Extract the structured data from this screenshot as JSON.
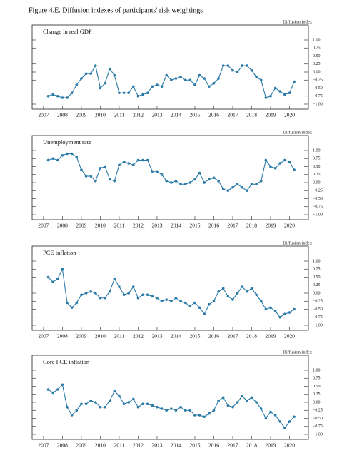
{
  "title": "Figure 4.E. Diffusion indexes of participants' risk weightings",
  "chart_data": [
    {
      "type": "line",
      "title": "Change in real GDP",
      "y_label": "Diffusion index",
      "color": "#2a7aa8",
      "x": [
        2007.25,
        2007.5,
        2007.75,
        2008,
        2008.25,
        2008.5,
        2008.75,
        2009,
        2009.25,
        2009.5,
        2009.75,
        2010,
        2010.25,
        2010.5,
        2010.75,
        2011,
        2011.25,
        2011.5,
        2011.75,
        2012,
        2012.25,
        2012.5,
        2012.75,
        2013,
        2013.25,
        2013.5,
        2013.75,
        2014,
        2014.25,
        2014.5,
        2014.75,
        2015,
        2015.25,
        2015.5,
        2015.75,
        2016,
        2016.25,
        2016.5,
        2016.75,
        2017,
        2017.25,
        2017.5,
        2017.75,
        2018,
        2018.25,
        2018.5,
        2018.75,
        2019,
        2019.25,
        2019.5,
        2019.75,
        2020,
        2020.25
      ],
      "values": [
        -0.75,
        -0.7,
        -0.75,
        -0.8,
        -0.8,
        -0.65,
        -0.4,
        -0.2,
        -0.05,
        -0.05,
        0.2,
        -0.5,
        -0.35,
        0.1,
        -0.1,
        -0.65,
        -0.65,
        -0.65,
        -0.45,
        -0.75,
        -0.7,
        -0.65,
        -0.45,
        -0.4,
        -0.45,
        -0.1,
        -0.25,
        -0.2,
        -0.15,
        -0.25,
        -0.25,
        -0.4,
        -0.1,
        -0.2,
        -0.45,
        -0.35,
        -0.2,
        0.2,
        0.2,
        0.05,
        0.0,
        0.2,
        0.2,
        0.05,
        -0.15,
        -0.25,
        -0.8,
        -0.75,
        -0.5,
        -0.6,
        -0.7,
        -0.65,
        -0.3
      ],
      "xlim": [
        2006.4,
        2021
      ],
      "xticks": [
        2007,
        2008,
        2009,
        2010,
        2011,
        2012,
        2013,
        2014,
        2015,
        2016,
        2017,
        2018,
        2019,
        2020
      ],
      "ylim": [
        -1,
        1
      ],
      "yticks": [
        {
          "value": 1,
          "label": "1.00"
        },
        {
          "value": 0.75,
          "label": "0.75"
        },
        {
          "value": 0.5,
          "label": "0.50"
        },
        {
          "value": 0.25,
          "label": "0.25"
        },
        {
          "value": 0,
          "label": "0.00"
        },
        {
          "value": -0.25,
          "label": "−0.25"
        },
        {
          "value": -0.5,
          "label": "−0.50"
        },
        {
          "value": -0.75,
          "label": "−0.75"
        },
        {
          "value": -1,
          "label": "−1.00"
        }
      ]
    },
    {
      "type": "line",
      "title": "Unemployment rate",
      "y_label": "Diffusion index",
      "color": "#2a7aa8",
      "x": [
        2007.25,
        2007.5,
        2007.75,
        2008,
        2008.25,
        2008.5,
        2008.75,
        2009,
        2009.25,
        2009.5,
        2009.75,
        2010,
        2010.25,
        2010.5,
        2010.75,
        2011,
        2011.25,
        2011.5,
        2011.75,
        2012,
        2012.25,
        2012.5,
        2012.75,
        2013,
        2013.25,
        2013.5,
        2013.75,
        2014,
        2014.25,
        2014.5,
        2014.75,
        2015,
        2015.25,
        2015.5,
        2015.75,
        2016,
        2016.25,
        2016.5,
        2016.75,
        2017,
        2017.25,
        2017.5,
        2017.75,
        2018,
        2018.25,
        2018.5,
        2018.75,
        2019,
        2019.25,
        2019.5,
        2019.75,
        2020,
        2020.25
      ],
      "values": [
        0.7,
        0.75,
        0.7,
        0.85,
        0.9,
        0.9,
        0.8,
        0.4,
        0.2,
        0.2,
        0.05,
        0.45,
        0.5,
        0.1,
        0.05,
        0.55,
        0.65,
        0.6,
        0.55,
        0.7,
        0.7,
        0.7,
        0.35,
        0.35,
        0.25,
        0.05,
        0.0,
        0.05,
        -0.05,
        -0.05,
        0.0,
        0.1,
        0.3,
        0.0,
        0.1,
        0.15,
        0.05,
        -0.2,
        -0.25,
        -0.15,
        -0.05,
        -0.15,
        -0.25,
        -0.05,
        -0.05,
        0.05,
        0.7,
        0.5,
        0.45,
        0.6,
        0.7,
        0.65,
        0.4
      ],
      "xlim": [
        2006.4,
        2021
      ],
      "xticks": [
        2007,
        2008,
        2009,
        2010,
        2011,
        2012,
        2013,
        2014,
        2015,
        2016,
        2017,
        2018,
        2019,
        2020
      ],
      "ylim": [
        -1,
        1
      ],
      "yticks": [
        {
          "value": 1,
          "label": "1.00"
        },
        {
          "value": 0.75,
          "label": "0.75"
        },
        {
          "value": 0.5,
          "label": "0.50"
        },
        {
          "value": 0.25,
          "label": "0.25"
        },
        {
          "value": 0,
          "label": "0.00"
        },
        {
          "value": -0.25,
          "label": "−0.25"
        },
        {
          "value": -0.5,
          "label": "−0.50"
        },
        {
          "value": -0.75,
          "label": "−0.75"
        },
        {
          "value": -1,
          "label": "−1.00"
        }
      ]
    },
    {
      "type": "line",
      "title": "PCE inflation",
      "y_label": "Diffusion index",
      "color": "#2a7aa8",
      "x": [
        2007.25,
        2007.5,
        2007.75,
        2008,
        2008.25,
        2008.5,
        2008.75,
        2009,
        2009.25,
        2009.5,
        2009.75,
        2010,
        2010.25,
        2010.5,
        2010.75,
        2011,
        2011.25,
        2011.5,
        2011.75,
        2012,
        2012.25,
        2012.5,
        2012.75,
        2013,
        2013.25,
        2013.5,
        2013.75,
        2014,
        2014.25,
        2014.5,
        2014.75,
        2015,
        2015.25,
        2015.5,
        2015.75,
        2016,
        2016.25,
        2016.5,
        2016.75,
        2017,
        2017.25,
        2017.5,
        2017.75,
        2018,
        2018.25,
        2018.5,
        2018.75,
        2019,
        2019.25,
        2019.5,
        2019.75,
        2020,
        2020.25
      ],
      "values": [
        0.5,
        0.35,
        0.45,
        0.75,
        -0.3,
        -0.45,
        -0.3,
        -0.05,
        0.0,
        0.05,
        0.0,
        -0.15,
        -0.15,
        0.05,
        0.45,
        0.2,
        -0.05,
        0.0,
        0.2,
        -0.15,
        -0.05,
        -0.05,
        -0.1,
        -0.15,
        -0.25,
        -0.2,
        -0.25,
        -0.15,
        -0.25,
        -0.3,
        -0.4,
        -0.3,
        -0.45,
        -0.65,
        -0.35,
        -0.25,
        0.05,
        0.15,
        -0.1,
        -0.2,
        0.0,
        0.2,
        0.05,
        0.15,
        -0.05,
        -0.25,
        -0.5,
        -0.45,
        -0.55,
        -0.75,
        -0.65,
        -0.6,
        -0.5
      ],
      "xlim": [
        2006.4,
        2021
      ],
      "xticks": [
        2007,
        2008,
        2009,
        2010,
        2011,
        2012,
        2013,
        2014,
        2015,
        2016,
        2017,
        2018,
        2019,
        2020
      ],
      "ylim": [
        -1,
        1
      ],
      "yticks": [
        {
          "value": 1,
          "label": "1.00"
        },
        {
          "value": 0.75,
          "label": "0.75"
        },
        {
          "value": 0.5,
          "label": "0.50"
        },
        {
          "value": 0.25,
          "label": "0.25"
        },
        {
          "value": 0,
          "label": "0.00"
        },
        {
          "value": -0.25,
          "label": "−0.25"
        },
        {
          "value": -0.5,
          "label": "−0.50"
        },
        {
          "value": -0.75,
          "label": "−0.75"
        },
        {
          "value": -1,
          "label": "−1.00"
        }
      ]
    },
    {
      "type": "line",
      "title": "Core PCE inflation",
      "y_label": "Diffusion index",
      "color": "#2a7aa8",
      "x": [
        2007.25,
        2007.5,
        2007.75,
        2008,
        2008.25,
        2008.5,
        2008.75,
        2009,
        2009.25,
        2009.5,
        2009.75,
        2010,
        2010.25,
        2010.5,
        2010.75,
        2011,
        2011.25,
        2011.5,
        2011.75,
        2012,
        2012.25,
        2012.5,
        2012.75,
        2013,
        2013.25,
        2013.5,
        2013.75,
        2014,
        2014.25,
        2014.5,
        2014.75,
        2015,
        2015.25,
        2015.5,
        2015.75,
        2016,
        2016.25,
        2016.5,
        2016.75,
        2017,
        2017.25,
        2017.5,
        2017.75,
        2018,
        2018.25,
        2018.5,
        2018.75,
        2019,
        2019.25,
        2019.5,
        2019.75,
        2020,
        2020.25
      ],
      "values": [
        0.4,
        0.3,
        0.4,
        0.55,
        -0.15,
        -0.4,
        -0.25,
        -0.05,
        -0.05,
        0.05,
        0.0,
        -0.15,
        -0.15,
        0.05,
        0.35,
        0.2,
        -0.05,
        0.0,
        0.1,
        -0.15,
        -0.05,
        -0.05,
        -0.1,
        -0.15,
        -0.2,
        -0.25,
        -0.2,
        -0.25,
        -0.15,
        -0.25,
        -0.25,
        -0.4,
        -0.4,
        -0.45,
        -0.35,
        -0.25,
        0.05,
        0.15,
        -0.1,
        -0.15,
        0.0,
        0.2,
        0.05,
        0.15,
        0.0,
        -0.2,
        -0.5,
        -0.3,
        -0.4,
        -0.6,
        -0.8,
        -0.6,
        -0.45
      ],
      "xlim": [
        2006.4,
        2021
      ],
      "xticks": [
        2007,
        2008,
        2009,
        2010,
        2011,
        2012,
        2013,
        2014,
        2015,
        2016,
        2017,
        2018,
        2019,
        2020
      ],
      "ylim": [
        -1,
        1
      ],
      "yticks": [
        {
          "value": 1,
          "label": "1.00"
        },
        {
          "value": 0.75,
          "label": "0.75"
        },
        {
          "value": 0.5,
          "label": "0.50"
        },
        {
          "value": 0.25,
          "label": "0.25"
        },
        {
          "value": 0,
          "label": "0.00"
        },
        {
          "value": -0.25,
          "label": "−0.25"
        },
        {
          "value": -0.5,
          "label": "−0.50"
        },
        {
          "value": -0.75,
          "label": "−0.75"
        },
        {
          "value": -1,
          "label": "−1.00"
        }
      ]
    }
  ]
}
